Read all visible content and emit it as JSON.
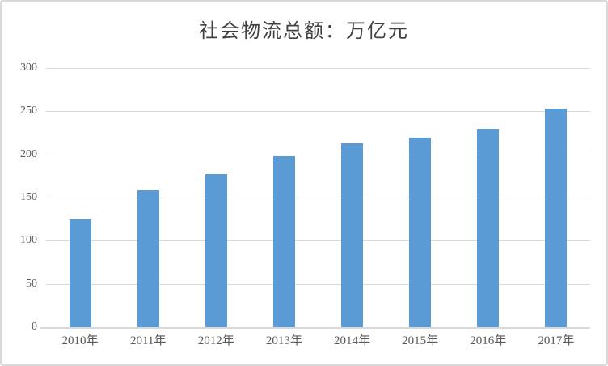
{
  "window": {
    "background": "#ffffff",
    "border_color": "#d9d9d9"
  },
  "chart_data": {
    "type": "bar",
    "title": "社会物流总额：万亿元",
    "categories": [
      "2010年",
      "2011年",
      "2012年",
      "2013年",
      "2014年",
      "2015年",
      "2016年",
      "2017年"
    ],
    "values": [
      125,
      158,
      177,
      198,
      213,
      219,
      230,
      253
    ],
    "xlabel": "",
    "ylabel": "",
    "ylim": [
      0,
      300
    ],
    "yticks": [
      0,
      50,
      100,
      150,
      200,
      250,
      300
    ],
    "grid": "horizontal",
    "legend_position": "none",
    "bar_color": "#5b9bd5",
    "gridline_color": "#d9d9d9",
    "axis_label_color": "#595959",
    "title_color": "#404040"
  }
}
